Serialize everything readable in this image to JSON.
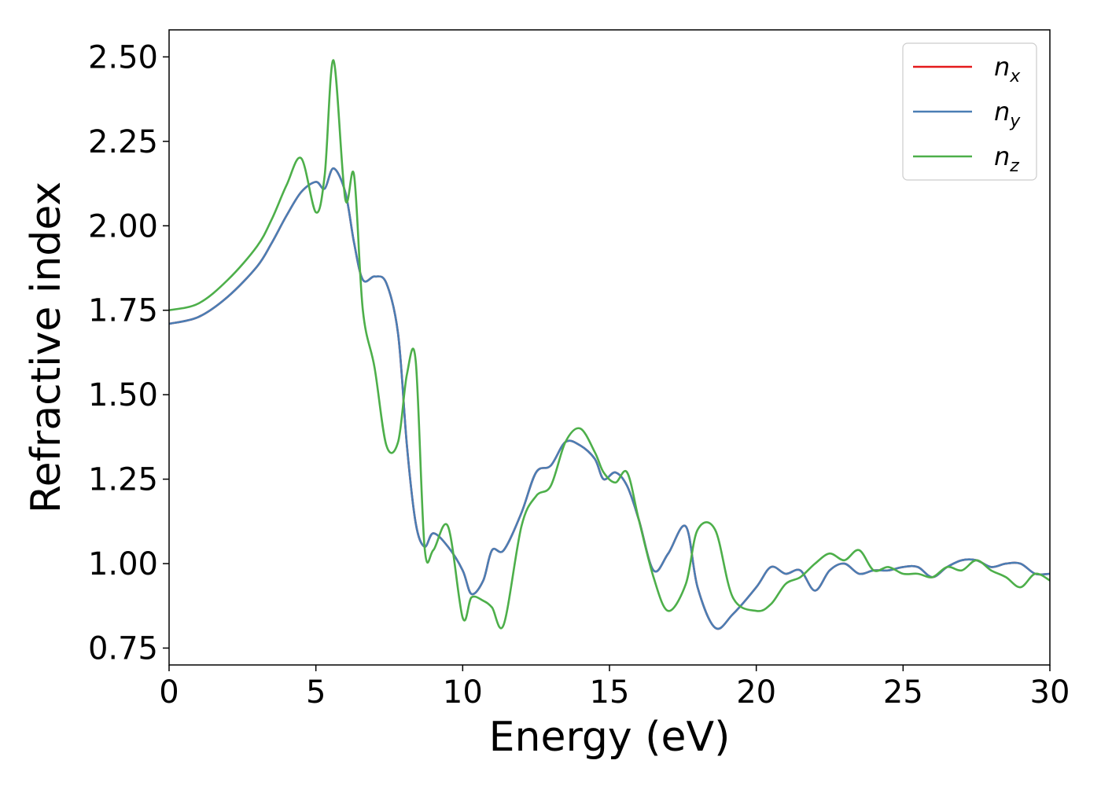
{
  "chart_data": {
    "type": "line",
    "title": "",
    "xlabel": "Energy (eV)",
    "ylabel": "Refractive index",
    "xlim": [
      0,
      30
    ],
    "ylim": [
      0.7,
      2.58
    ],
    "xticks": [
      "0",
      "5",
      "10",
      "15",
      "20",
      "25",
      "30"
    ],
    "yticks": [
      "0.75",
      "1.00",
      "1.25",
      "1.50",
      "1.75",
      "2.00",
      "2.25",
      "2.50"
    ],
    "grid": false,
    "legend_position": "top-right",
    "colors": {
      "n_x": "#e41a1c",
      "n_y": "#4a7eb4",
      "n_z": "#4daf4a"
    },
    "series": [
      {
        "name": "n_x",
        "legend_base": "n",
        "legend_sub": "x",
        "x": [
          0,
          1,
          2,
          3,
          3.5,
          4,
          4.5,
          5,
          5.3,
          5.6,
          6.0,
          6.3,
          6.6,
          7.0,
          7.4,
          7.8,
          8.1,
          8.4,
          8.7,
          9.0,
          9.5,
          10.0,
          10.3,
          10.7,
          11.0,
          11.4,
          12.0,
          12.5,
          13.0,
          13.5,
          14.0,
          14.5,
          14.8,
          15.2,
          15.6,
          16.0,
          16.5,
          17.0,
          17.6,
          18.0,
          18.6,
          19.2,
          20.0,
          20.5,
          21.0,
          21.5,
          22.0,
          22.5,
          23.0,
          23.5,
          24.0,
          24.5,
          25.0,
          25.5,
          26.0,
          26.5,
          27.0,
          27.5,
          28.0,
          28.5,
          29.0,
          29.5,
          30.0
        ],
        "y": [
          1.71,
          1.73,
          1.79,
          1.88,
          1.95,
          2.03,
          2.1,
          2.13,
          2.11,
          2.17,
          2.1,
          1.95,
          1.84,
          1.85,
          1.83,
          1.68,
          1.35,
          1.12,
          1.05,
          1.09,
          1.05,
          0.98,
          0.91,
          0.95,
          1.04,
          1.04,
          1.15,
          1.27,
          1.29,
          1.36,
          1.35,
          1.31,
          1.25,
          1.27,
          1.23,
          1.13,
          0.98,
          1.03,
          1.11,
          0.93,
          0.81,
          0.85,
          0.93,
          0.99,
          0.97,
          0.98,
          0.92,
          0.98,
          1.0,
          0.97,
          0.98,
          0.98,
          0.99,
          0.99,
          0.96,
          0.99,
          1.01,
          1.01,
          0.99,
          1.0,
          1.0,
          0.97,
          0.97
        ]
      },
      {
        "name": "n_y",
        "legend_base": "n",
        "legend_sub": "y",
        "x": [
          0,
          1,
          2,
          3,
          3.5,
          4,
          4.5,
          5,
          5.3,
          5.6,
          6.0,
          6.3,
          6.6,
          7.0,
          7.4,
          7.8,
          8.1,
          8.4,
          8.7,
          9.0,
          9.5,
          10.0,
          10.3,
          10.7,
          11.0,
          11.4,
          12.0,
          12.5,
          13.0,
          13.5,
          14.0,
          14.5,
          14.8,
          15.2,
          15.6,
          16.0,
          16.5,
          17.0,
          17.6,
          18.0,
          18.6,
          19.2,
          20.0,
          20.5,
          21.0,
          21.5,
          22.0,
          22.5,
          23.0,
          23.5,
          24.0,
          24.5,
          25.0,
          25.5,
          26.0,
          26.5,
          27.0,
          27.5,
          28.0,
          28.5,
          29.0,
          29.5,
          30.0
        ],
        "y": [
          1.71,
          1.73,
          1.79,
          1.88,
          1.95,
          2.03,
          2.1,
          2.13,
          2.11,
          2.17,
          2.1,
          1.95,
          1.84,
          1.85,
          1.83,
          1.68,
          1.35,
          1.12,
          1.05,
          1.09,
          1.05,
          0.98,
          0.91,
          0.95,
          1.04,
          1.04,
          1.15,
          1.27,
          1.29,
          1.36,
          1.35,
          1.31,
          1.25,
          1.27,
          1.23,
          1.13,
          0.98,
          1.03,
          1.11,
          0.93,
          0.81,
          0.85,
          0.93,
          0.99,
          0.97,
          0.98,
          0.92,
          0.98,
          1.0,
          0.97,
          0.98,
          0.98,
          0.99,
          0.99,
          0.96,
          0.99,
          1.01,
          1.01,
          0.99,
          1.0,
          1.0,
          0.97,
          0.97
        ]
      },
      {
        "name": "n_z",
        "legend_base": "n",
        "legend_sub": "z",
        "x": [
          0,
          1,
          2,
          3,
          3.5,
          4,
          4.5,
          5,
          5.3,
          5.6,
          6.0,
          6.3,
          6.6,
          7.0,
          7.4,
          7.8,
          8.1,
          8.4,
          8.7,
          9.0,
          9.5,
          10.0,
          10.3,
          10.7,
          11.0,
          11.4,
          12.0,
          12.5,
          13.0,
          13.5,
          14.0,
          14.5,
          14.8,
          15.2,
          15.6,
          16.0,
          16.5,
          17.0,
          17.6,
          18.0,
          18.6,
          19.2,
          20.0,
          20.5,
          21.0,
          21.5,
          22.0,
          22.5,
          23.0,
          23.5,
          24.0,
          24.5,
          25.0,
          25.5,
          26.0,
          26.5,
          27.0,
          27.5,
          28.0,
          28.5,
          29.0,
          29.5,
          30.0
        ],
        "y": [
          1.75,
          1.77,
          1.84,
          1.94,
          2.02,
          2.12,
          2.2,
          2.04,
          2.15,
          2.49,
          2.08,
          2.15,
          1.75,
          1.58,
          1.35,
          1.36,
          1.56,
          1.6,
          1.05,
          1.04,
          1.11,
          0.84,
          0.9,
          0.89,
          0.87,
          0.82,
          1.11,
          1.2,
          1.23,
          1.36,
          1.4,
          1.33,
          1.27,
          1.24,
          1.27,
          1.13,
          0.96,
          0.86,
          0.94,
          1.1,
          1.1,
          0.9,
          0.86,
          0.88,
          0.94,
          0.96,
          1.0,
          1.03,
          1.01,
          1.04,
          0.98,
          0.99,
          0.97,
          0.97,
          0.96,
          0.99,
          0.98,
          1.01,
          0.98,
          0.96,
          0.93,
          0.97,
          0.95
        ]
      }
    ]
  }
}
